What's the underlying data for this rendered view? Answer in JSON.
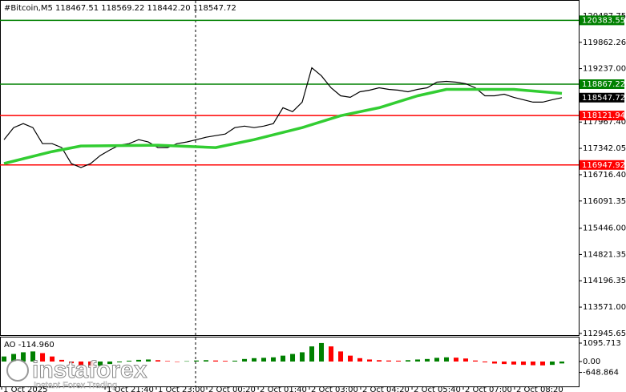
{
  "chart_data": {
    "type": "line",
    "header": "#Bitcoin,M5  118467.51 118569.22 118442.20 118547.72",
    "xlim": [
      -0.42,
      59.75
    ],
    "ylim": [
      112906,
      120867
    ],
    "yticks": [
      120487.75,
      119862.26,
      {
        "value": 119237,
        "label": "119237.00"
      },
      {
        "value": 117967.4,
        "label": "117967.40"
      },
      117342.05,
      {
        "value": 116716.4,
        "label": "116716.40"
      },
      116091.35,
      {
        "value": 115446,
        "label": "115446.00"
      },
      114821.35,
      114196.35,
      {
        "value": 113571,
        "label": "113571.00"
      },
      112945.65
    ],
    "xticks": [
      {
        "value": -0.25,
        "label": "1 Oct 2025"
      },
      {
        "value": 10.5,
        "label": "1 Oct 21:40"
      },
      {
        "value": 15.83,
        "label": "1 Oct 23:00"
      },
      {
        "value": 21.08,
        "label": "2 Oct 00:20"
      },
      {
        "value": 26.42,
        "label": "2 Oct 01:40"
      },
      {
        "value": 31.75,
        "label": "2 Oct 03:00"
      },
      {
        "value": 37.08,
        "label": "2 Oct 04:20"
      },
      {
        "value": 42.42,
        "label": "2 Oct 05:40"
      },
      {
        "value": 47.75,
        "label": "2 Oct 07:00"
      },
      {
        "value": 53.08,
        "label": "2 Oct 08:20"
      }
    ],
    "series": [
      {
        "color": "#000000",
        "values": [
          117550,
          117835,
          117930,
          117835,
          117455,
          117455,
          117360,
          116980,
          116887,
          116980,
          117170,
          117303,
          117418,
          117455,
          117550,
          117495,
          117360,
          117360,
          117455,
          117495,
          117550,
          117607,
          117645,
          117683,
          117835,
          117872,
          117835,
          117872,
          117930,
          118308,
          118214,
          118440,
          119256,
          119066,
          118782,
          118592,
          118555,
          118687,
          118725,
          118782,
          118744,
          118725,
          118687,
          118744,
          118782,
          118915,
          118934,
          118915,
          118877,
          118782,
          118592,
          118592,
          118630,
          118555,
          118498,
          118440,
          118440,
          118498,
          118547.72
        ]
      }
    ],
    "ma": {
      "color": "#32cd32",
      "x": [
        0,
        5,
        8,
        16,
        22,
        26,
        31,
        35,
        39,
        43,
        46,
        53,
        58
      ],
      "values": [
        116982,
        117266,
        117398,
        117418,
        117360,
        117550,
        117835,
        118119,
        118308,
        118592,
        118744,
        118744,
        118649
      ]
    },
    "levels": [
      {
        "value": 120383.55,
        "color": "#008000"
      },
      {
        "value": 118867.22,
        "color": "#008000"
      },
      {
        "value": 118121.94,
        "color": "#ff0000"
      },
      {
        "value": 116947.92,
        "color": "#ff0000"
      }
    ],
    "current_price": 118547.72,
    "ao": {
      "label": "AO -114.960",
      "ylim": [
        -1480,
        1430
      ],
      "yticks": [
        1095.713,
        {
          "value": 0,
          "label": "0.00"
        },
        -648.864
      ],
      "up_color": "#008000",
      "down_color": "#ff0000",
      "values": [
        300,
        450,
        550,
        600,
        500,
        300,
        100,
        -100,
        -250,
        -300,
        -250,
        -150,
        -50,
        50,
        100,
        120,
        80,
        30,
        0,
        20,
        60,
        80,
        60,
        40,
        50,
        150,
        200,
        220,
        250,
        350,
        450,
        550,
        900,
        1100,
        900,
        600,
        350,
        200,
        120,
        80,
        60,
        50,
        80,
        120,
        150,
        220,
        250,
        230,
        180,
        60,
        -50,
        -120,
        -150,
        -180,
        -200,
        -220,
        -230,
        -200,
        -114.96
      ]
    },
    "watermark": {
      "brand": "instaforex",
      "slogan": "Instant Forex Trading"
    }
  }
}
